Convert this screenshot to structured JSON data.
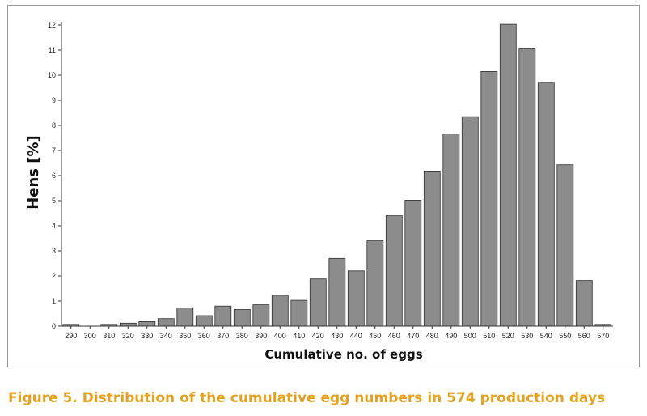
{
  "caption": "Figure 5. Distribution of the cumulative egg numbers in 574 production days",
  "colors": {
    "bar_fill": "#8c8c8c",
    "bar_stroke": "#2f2f2f",
    "caption": "#e4a21f",
    "frame": "#9a9a9a"
  },
  "chart_data": {
    "type": "bar",
    "xlabel": "Cumulative no. of eggs",
    "ylabel": "Hens [%]",
    "ylim": [
      0,
      12
    ],
    "yticks": [
      "0",
      "1",
      "2",
      "3",
      "4",
      "5",
      "6",
      "7",
      "8",
      "9",
      "10",
      "11",
      "12"
    ],
    "grid": false,
    "categories": [
      "290",
      "300",
      "310",
      "320",
      "330",
      "340",
      "350",
      "360",
      "370",
      "380",
      "390",
      "400",
      "410",
      "420",
      "430",
      "440",
      "450",
      "460",
      "470",
      "480",
      "490",
      "500",
      "510",
      "520",
      "530",
      "540",
      "550",
      "560",
      "570"
    ],
    "values": [
      0.07,
      0.0,
      0.07,
      0.12,
      0.18,
      0.3,
      0.73,
      0.42,
      0.8,
      0.66,
      0.85,
      1.23,
      1.03,
      1.88,
      2.7,
      2.2,
      3.4,
      4.4,
      5.02,
      6.18,
      7.66,
      8.35,
      10.15,
      12.03,
      11.08,
      9.72,
      6.43,
      1.82,
      0.07
    ]
  }
}
